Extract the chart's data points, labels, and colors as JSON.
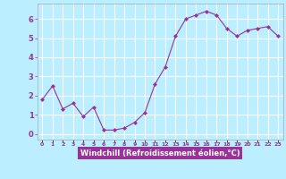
{
  "x": [
    0,
    1,
    2,
    3,
    4,
    5,
    6,
    7,
    8,
    9,
    10,
    11,
    12,
    13,
    14,
    15,
    16,
    17,
    18,
    19,
    20,
    21,
    22,
    23
  ],
  "y": [
    1.8,
    2.5,
    1.3,
    1.6,
    0.9,
    1.4,
    0.2,
    0.2,
    0.3,
    0.6,
    1.1,
    2.6,
    3.5,
    5.1,
    6.0,
    6.2,
    6.4,
    6.2,
    5.5,
    5.1,
    5.4,
    5.5,
    5.6,
    5.1
  ],
  "line_color": "#993399",
  "marker": "D",
  "marker_size": 2,
  "bg_color": "#bbeeff",
  "grid_color": "#ffffff",
  "xlabel": "Windchill (Refroidissement éolien,°C)",
  "xlabel_color": "white",
  "xlabel_bg": "#993399",
  "ylabel_ticks": [
    0,
    1,
    2,
    3,
    4,
    5,
    6
  ],
  "xtick_labels": [
    "0",
    "1",
    "2",
    "3",
    "4",
    "5",
    "6",
    "7",
    "8",
    "9",
    "10",
    "11",
    "12",
    "13",
    "14",
    "15",
    "16",
    "17",
    "18",
    "19",
    "20",
    "21",
    "22",
    "23"
  ],
  "ylim": [
    -0.3,
    6.8
  ],
  "xlim": [
    -0.5,
    23.5
  ],
  "tick_color": "#993399",
  "axis_color": "#993399",
  "spine_color": "#aaaaaa"
}
